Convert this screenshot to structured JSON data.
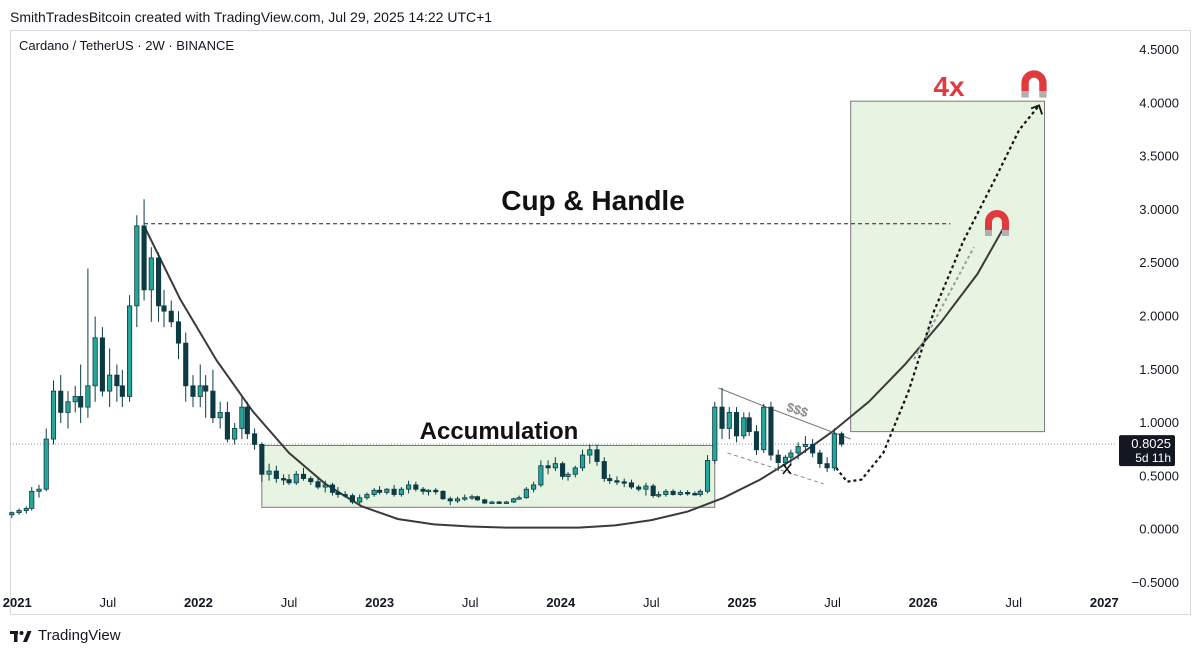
{
  "header": {
    "caption": "SmithTradesBitcoin created with TradingView.com, Jul 29, 2025 14:22 UTC+1"
  },
  "symbol": {
    "label": "Cardano / TetherUS · 2W · BINANCE"
  },
  "footer": {
    "brand": "TradingView",
    "logo_icon": "tradingview-logo-icon"
  },
  "annotations": {
    "pattern_title": "Cup & Handle",
    "range_label": "Accumulation",
    "target_label": "4x",
    "liquidity_label": "$$$",
    "magnet_icon": "magnet-icon"
  },
  "price_tag": {
    "price": "0.8025",
    "countdown": "5d 11h"
  },
  "colors": {
    "up": "#26a69a",
    "down": "#0d3b44",
    "target_box": "#e6f4e1",
    "target_text": "#e03a3e",
    "magnet": "#e03a3e",
    "price_tag_bg": "#131722"
  },
  "chart_data": {
    "type": "candlestick",
    "ylim": [
      -0.5,
      4.5
    ],
    "ytick_labels": [
      "4.5000",
      "4.0000",
      "3.5000",
      "3.0000",
      "2.5000",
      "2.0000",
      "1.5000",
      "1.0000",
      "0.5000",
      "0.0000",
      "−0.5000"
    ],
    "ytick_values": [
      4.5,
      4.0,
      3.5,
      3.0,
      2.5,
      2.0,
      1.5,
      1.0,
      0.5,
      0.0,
      -0.5
    ],
    "xtick_labels": [
      "2021",
      "Jul",
      "2022",
      "Jul",
      "2023",
      "Jul",
      "2024",
      "Jul",
      "2025",
      "Jul",
      "2026",
      "Jul",
      "2027"
    ],
    "xtick_values": [
      2021.0,
      2021.5,
      2022.0,
      2022.5,
      2023.0,
      2023.5,
      2024.0,
      2024.5,
      2025.0,
      2025.5,
      2026.0,
      2026.5,
      2027.0
    ],
    "xtick_bold": [
      true,
      false,
      true,
      false,
      true,
      false,
      true,
      false,
      true,
      false,
      true,
      false,
      true
    ],
    "xlim": [
      2020.96,
      2027.07
    ],
    "current_price": 0.8025,
    "candles": [
      {
        "t": 2020.97,
        "o": 0.14,
        "h": 0.17,
        "l": 0.11,
        "c": 0.16
      },
      {
        "t": 2021.01,
        "o": 0.16,
        "h": 0.2,
        "l": 0.14,
        "c": 0.18
      },
      {
        "t": 2021.05,
        "o": 0.18,
        "h": 0.22,
        "l": 0.15,
        "c": 0.2
      },
      {
        "t": 2021.08,
        "o": 0.2,
        "h": 0.4,
        "l": 0.18,
        "c": 0.36
      },
      {
        "t": 2021.12,
        "o": 0.36,
        "h": 0.42,
        "l": 0.3,
        "c": 0.38
      },
      {
        "t": 2021.16,
        "o": 0.38,
        "h": 0.95,
        "l": 0.36,
        "c": 0.85
      },
      {
        "t": 2021.2,
        "o": 0.85,
        "h": 1.4,
        "l": 0.8,
        "c": 1.3
      },
      {
        "t": 2021.24,
        "o": 1.3,
        "h": 1.45,
        "l": 1.0,
        "c": 1.1
      },
      {
        "t": 2021.28,
        "o": 1.1,
        "h": 1.3,
        "l": 0.95,
        "c": 1.2
      },
      {
        "t": 2021.32,
        "o": 1.2,
        "h": 1.35,
        "l": 1.1,
        "c": 1.25
      },
      {
        "t": 2021.35,
        "o": 1.25,
        "h": 1.55,
        "l": 1.0,
        "c": 1.15
      },
      {
        "t": 2021.39,
        "o": 1.15,
        "h": 2.45,
        "l": 1.05,
        "c": 1.35
      },
      {
        "t": 2021.43,
        "o": 1.35,
        "h": 2.0,
        "l": 1.2,
        "c": 1.8
      },
      {
        "t": 2021.47,
        "o": 1.8,
        "h": 1.9,
        "l": 1.25,
        "c": 1.3
      },
      {
        "t": 2021.51,
        "o": 1.3,
        "h": 1.7,
        "l": 1.15,
        "c": 1.45
      },
      {
        "t": 2021.55,
        "o": 1.45,
        "h": 1.55,
        "l": 1.2,
        "c": 1.35
      },
      {
        "t": 2021.58,
        "o": 1.35,
        "h": 1.5,
        "l": 1.15,
        "c": 1.25
      },
      {
        "t": 2021.62,
        "o": 1.25,
        "h": 2.2,
        "l": 1.2,
        "c": 2.1
      },
      {
        "t": 2021.66,
        "o": 2.1,
        "h": 2.95,
        "l": 1.9,
        "c": 2.85
      },
      {
        "t": 2021.7,
        "o": 2.85,
        "h": 3.1,
        "l": 2.15,
        "c": 2.25
      },
      {
        "t": 2021.74,
        "o": 2.25,
        "h": 2.65,
        "l": 1.95,
        "c": 2.55
      },
      {
        "t": 2021.78,
        "o": 2.55,
        "h": 2.6,
        "l": 1.95,
        "c": 2.1
      },
      {
        "t": 2021.81,
        "o": 2.1,
        "h": 2.25,
        "l": 1.9,
        "c": 2.05
      },
      {
        "t": 2021.85,
        "o": 2.05,
        "h": 2.15,
        "l": 1.9,
        "c": 1.95
      },
      {
        "t": 2021.89,
        "o": 1.95,
        "h": 2.05,
        "l": 1.6,
        "c": 1.75
      },
      {
        "t": 2021.93,
        "o": 1.75,
        "h": 1.85,
        "l": 1.2,
        "c": 1.35
      },
      {
        "t": 2021.97,
        "o": 1.35,
        "h": 1.45,
        "l": 1.15,
        "c": 1.25
      },
      {
        "t": 2022.01,
        "o": 1.25,
        "h": 1.55,
        "l": 1.15,
        "c": 1.35
      },
      {
        "t": 2022.04,
        "o": 1.35,
        "h": 1.45,
        "l": 1.05,
        "c": 1.3
      },
      {
        "t": 2022.08,
        "o": 1.3,
        "h": 1.5,
        "l": 1.0,
        "c": 1.05
      },
      {
        "t": 2022.12,
        "o": 1.05,
        "h": 1.2,
        "l": 0.95,
        "c": 1.1
      },
      {
        "t": 2022.16,
        "o": 1.1,
        "h": 1.2,
        "l": 0.82,
        "c": 0.85
      },
      {
        "t": 2022.2,
        "o": 0.85,
        "h": 1.0,
        "l": 0.8,
        "c": 0.95
      },
      {
        "t": 2022.24,
        "o": 0.95,
        "h": 1.25,
        "l": 0.85,
        "c": 1.15
      },
      {
        "t": 2022.27,
        "o": 1.15,
        "h": 1.2,
        "l": 0.85,
        "c": 0.9
      },
      {
        "t": 2022.31,
        "o": 0.9,
        "h": 0.95,
        "l": 0.75,
        "c": 0.8
      },
      {
        "t": 2022.35,
        "o": 0.8,
        "h": 0.82,
        "l": 0.45,
        "c": 0.52
      },
      {
        "t": 2022.39,
        "o": 0.52,
        "h": 0.62,
        "l": 0.46,
        "c": 0.55
      },
      {
        "t": 2022.43,
        "o": 0.55,
        "h": 0.6,
        "l": 0.44,
        "c": 0.48
      },
      {
        "t": 2022.47,
        "o": 0.48,
        "h": 0.52,
        "l": 0.42,
        "c": 0.47
      },
      {
        "t": 2022.5,
        "o": 0.47,
        "h": 0.52,
        "l": 0.42,
        "c": 0.44
      },
      {
        "t": 2022.54,
        "o": 0.44,
        "h": 0.55,
        "l": 0.42,
        "c": 0.52
      },
      {
        "t": 2022.58,
        "o": 0.52,
        "h": 0.58,
        "l": 0.46,
        "c": 0.48
      },
      {
        "t": 2022.62,
        "o": 0.48,
        "h": 0.5,
        "l": 0.42,
        "c": 0.45
      },
      {
        "t": 2022.66,
        "o": 0.45,
        "h": 0.48,
        "l": 0.38,
        "c": 0.4
      },
      {
        "t": 2022.7,
        "o": 0.4,
        "h": 0.46,
        "l": 0.35,
        "c": 0.42
      },
      {
        "t": 2022.74,
        "o": 0.42,
        "h": 0.44,
        "l": 0.32,
        "c": 0.35
      },
      {
        "t": 2022.77,
        "o": 0.35,
        "h": 0.4,
        "l": 0.3,
        "c": 0.33
      },
      {
        "t": 2022.81,
        "o": 0.33,
        "h": 0.36,
        "l": 0.3,
        "c": 0.32
      },
      {
        "t": 2022.85,
        "o": 0.32,
        "h": 0.34,
        "l": 0.24,
        "c": 0.26
      },
      {
        "t": 2022.89,
        "o": 0.26,
        "h": 0.33,
        "l": 0.24,
        "c": 0.3
      },
      {
        "t": 2022.93,
        "o": 0.3,
        "h": 0.35,
        "l": 0.28,
        "c": 0.33
      },
      {
        "t": 2022.97,
        "o": 0.33,
        "h": 0.39,
        "l": 0.31,
        "c": 0.37
      },
      {
        "t": 2023.0,
        "o": 0.37,
        "h": 0.41,
        "l": 0.33,
        "c": 0.35
      },
      {
        "t": 2023.04,
        "o": 0.35,
        "h": 0.39,
        "l": 0.33,
        "c": 0.38
      },
      {
        "t": 2023.08,
        "o": 0.38,
        "h": 0.42,
        "l": 0.31,
        "c": 0.33
      },
      {
        "t": 2023.12,
        "o": 0.33,
        "h": 0.4,
        "l": 0.31,
        "c": 0.38
      },
      {
        "t": 2023.16,
        "o": 0.38,
        "h": 0.46,
        "l": 0.34,
        "c": 0.42
      },
      {
        "t": 2023.2,
        "o": 0.42,
        "h": 0.45,
        "l": 0.36,
        "c": 0.38
      },
      {
        "t": 2023.24,
        "o": 0.38,
        "h": 0.4,
        "l": 0.33,
        "c": 0.36
      },
      {
        "t": 2023.27,
        "o": 0.36,
        "h": 0.38,
        "l": 0.32,
        "c": 0.37
      },
      {
        "t": 2023.31,
        "o": 0.37,
        "h": 0.39,
        "l": 0.33,
        "c": 0.36
      },
      {
        "t": 2023.35,
        "o": 0.36,
        "h": 0.37,
        "l": 0.28,
        "c": 0.29
      },
      {
        "t": 2023.39,
        "o": 0.29,
        "h": 0.31,
        "l": 0.23,
        "c": 0.27
      },
      {
        "t": 2023.43,
        "o": 0.27,
        "h": 0.31,
        "l": 0.25,
        "c": 0.29
      },
      {
        "t": 2023.47,
        "o": 0.29,
        "h": 0.33,
        "l": 0.27,
        "c": 0.3
      },
      {
        "t": 2023.51,
        "o": 0.3,
        "h": 0.33,
        "l": 0.28,
        "c": 0.31
      },
      {
        "t": 2023.54,
        "o": 0.31,
        "h": 0.32,
        "l": 0.27,
        "c": 0.28
      },
      {
        "t": 2023.58,
        "o": 0.28,
        "h": 0.29,
        "l": 0.24,
        "c": 0.25
      },
      {
        "t": 2023.62,
        "o": 0.25,
        "h": 0.27,
        "l": 0.24,
        "c": 0.26
      },
      {
        "t": 2023.66,
        "o": 0.26,
        "h": 0.27,
        "l": 0.24,
        "c": 0.25
      },
      {
        "t": 2023.7,
        "o": 0.25,
        "h": 0.27,
        "l": 0.24,
        "c": 0.26
      },
      {
        "t": 2023.74,
        "o": 0.26,
        "h": 0.3,
        "l": 0.25,
        "c": 0.29
      },
      {
        "t": 2023.77,
        "o": 0.29,
        "h": 0.32,
        "l": 0.28,
        "c": 0.3
      },
      {
        "t": 2023.81,
        "o": 0.3,
        "h": 0.4,
        "l": 0.29,
        "c": 0.38
      },
      {
        "t": 2023.85,
        "o": 0.38,
        "h": 0.45,
        "l": 0.35,
        "c": 0.42
      },
      {
        "t": 2023.89,
        "o": 0.42,
        "h": 0.65,
        "l": 0.4,
        "c": 0.6
      },
      {
        "t": 2023.93,
        "o": 0.6,
        "h": 0.65,
        "l": 0.52,
        "c": 0.58
      },
      {
        "t": 2023.97,
        "o": 0.58,
        "h": 0.68,
        "l": 0.55,
        "c": 0.62
      },
      {
        "t": 2024.01,
        "o": 0.62,
        "h": 0.64,
        "l": 0.47,
        "c": 0.5
      },
      {
        "t": 2024.04,
        "o": 0.5,
        "h": 0.54,
        "l": 0.46,
        "c": 0.52
      },
      {
        "t": 2024.08,
        "o": 0.52,
        "h": 0.6,
        "l": 0.49,
        "c": 0.58
      },
      {
        "t": 2024.12,
        "o": 0.58,
        "h": 0.75,
        "l": 0.55,
        "c": 0.7
      },
      {
        "t": 2024.16,
        "o": 0.7,
        "h": 0.8,
        "l": 0.62,
        "c": 0.75
      },
      {
        "t": 2024.2,
        "o": 0.75,
        "h": 0.8,
        "l": 0.6,
        "c": 0.64
      },
      {
        "t": 2024.24,
        "o": 0.64,
        "h": 0.68,
        "l": 0.45,
        "c": 0.48
      },
      {
        "t": 2024.27,
        "o": 0.48,
        "h": 0.52,
        "l": 0.43,
        "c": 0.46
      },
      {
        "t": 2024.31,
        "o": 0.46,
        "h": 0.5,
        "l": 0.42,
        "c": 0.45
      },
      {
        "t": 2024.35,
        "o": 0.45,
        "h": 0.48,
        "l": 0.4,
        "c": 0.44
      },
      {
        "t": 2024.39,
        "o": 0.44,
        "h": 0.47,
        "l": 0.38,
        "c": 0.4
      },
      {
        "t": 2024.43,
        "o": 0.4,
        "h": 0.42,
        "l": 0.36,
        "c": 0.38
      },
      {
        "t": 2024.47,
        "o": 0.38,
        "h": 0.44,
        "l": 0.32,
        "c": 0.41
      },
      {
        "t": 2024.51,
        "o": 0.41,
        "h": 0.43,
        "l": 0.3,
        "c": 0.32
      },
      {
        "t": 2024.54,
        "o": 0.32,
        "h": 0.36,
        "l": 0.3,
        "c": 0.33
      },
      {
        "t": 2024.58,
        "o": 0.33,
        "h": 0.38,
        "l": 0.31,
        "c": 0.36
      },
      {
        "t": 2024.62,
        "o": 0.36,
        "h": 0.38,
        "l": 0.32,
        "c": 0.33
      },
      {
        "t": 2024.66,
        "o": 0.33,
        "h": 0.37,
        "l": 0.32,
        "c": 0.35
      },
      {
        "t": 2024.7,
        "o": 0.35,
        "h": 0.37,
        "l": 0.32,
        "c": 0.34
      },
      {
        "t": 2024.74,
        "o": 0.34,
        "h": 0.36,
        "l": 0.32,
        "c": 0.33
      },
      {
        "t": 2024.77,
        "o": 0.33,
        "h": 0.38,
        "l": 0.31,
        "c": 0.36
      },
      {
        "t": 2024.81,
        "o": 0.36,
        "h": 0.7,
        "l": 0.34,
        "c": 0.65
      },
      {
        "t": 2024.85,
        "o": 0.65,
        "h": 1.2,
        "l": 0.62,
        "c": 1.15
      },
      {
        "t": 2024.89,
        "o": 1.15,
        "h": 1.33,
        "l": 0.85,
        "c": 0.95
      },
      {
        "t": 2024.93,
        "o": 0.95,
        "h": 1.15,
        "l": 0.85,
        "c": 1.1
      },
      {
        "t": 2024.97,
        "o": 1.1,
        "h": 1.15,
        "l": 0.82,
        "c": 0.88
      },
      {
        "t": 2025.01,
        "o": 0.88,
        "h": 1.1,
        "l": 0.85,
        "c": 1.05
      },
      {
        "t": 2025.04,
        "o": 1.05,
        "h": 1.1,
        "l": 0.88,
        "c": 0.92
      },
      {
        "t": 2025.08,
        "o": 0.92,
        "h": 0.98,
        "l": 0.7,
        "c": 0.75
      },
      {
        "t": 2025.12,
        "o": 0.75,
        "h": 1.18,
        "l": 0.72,
        "c": 1.15
      },
      {
        "t": 2025.16,
        "o": 1.15,
        "h": 1.2,
        "l": 0.65,
        "c": 0.7
      },
      {
        "t": 2025.2,
        "o": 0.7,
        "h": 0.75,
        "l": 0.55,
        "c": 0.63
      },
      {
        "t": 2025.24,
        "o": 0.63,
        "h": 0.7,
        "l": 0.58,
        "c": 0.68
      },
      {
        "t": 2025.27,
        "o": 0.68,
        "h": 0.75,
        "l": 0.6,
        "c": 0.72
      },
      {
        "t": 2025.31,
        "o": 0.72,
        "h": 0.82,
        "l": 0.66,
        "c": 0.78
      },
      {
        "t": 2025.35,
        "o": 0.78,
        "h": 0.88,
        "l": 0.72,
        "c": 0.8
      },
      {
        "t": 2025.39,
        "o": 0.8,
        "h": 0.85,
        "l": 0.68,
        "c": 0.72
      },
      {
        "t": 2025.43,
        "o": 0.72,
        "h": 0.75,
        "l": 0.58,
        "c": 0.62
      },
      {
        "t": 2025.47,
        "o": 0.62,
        "h": 0.68,
        "l": 0.54,
        "c": 0.58
      },
      {
        "t": 2025.51,
        "o": 0.58,
        "h": 0.95,
        "l": 0.55,
        "c": 0.9
      },
      {
        "t": 2025.55,
        "o": 0.9,
        "h": 0.92,
        "l": 0.78,
        "c": 0.8025
      }
    ],
    "cup_curve": [
      {
        "t": 2021.7,
        "v": 2.85
      },
      {
        "t": 2021.9,
        "v": 2.16
      },
      {
        "t": 2022.1,
        "v": 1.59
      },
      {
        "t": 2022.3,
        "v": 1.11
      },
      {
        "t": 2022.5,
        "v": 0.72
      },
      {
        "t": 2022.7,
        "v": 0.43
      },
      {
        "t": 2022.9,
        "v": 0.22
      },
      {
        "t": 2023.1,
        "v": 0.1
      },
      {
        "t": 2023.3,
        "v": 0.05
      },
      {
        "t": 2023.5,
        "v": 0.03
      },
      {
        "t": 2023.7,
        "v": 0.02
      },
      {
        "t": 2023.9,
        "v": 0.02
      },
      {
        "t": 2024.1,
        "v": 0.02
      },
      {
        "t": 2024.3,
        "v": 0.04
      },
      {
        "t": 2024.5,
        "v": 0.09
      },
      {
        "t": 2024.7,
        "v": 0.17
      },
      {
        "t": 2024.9,
        "v": 0.3
      },
      {
        "t": 2025.1,
        "v": 0.47
      },
      {
        "t": 2025.3,
        "v": 0.68
      },
      {
        "t": 2025.5,
        "v": 0.92
      },
      {
        "t": 2025.7,
        "v": 1.2
      },
      {
        "t": 2025.9,
        "v": 1.55
      },
      {
        "t": 2026.1,
        "v": 1.95
      },
      {
        "t": 2026.3,
        "v": 2.4
      },
      {
        "t": 2026.45,
        "v": 2.85
      }
    ],
    "resistance_line": {
      "t1": 2021.7,
      "t2": 2026.15,
      "v": 2.87
    },
    "accumulation_box": {
      "t1": 2022.35,
      "t2": 2024.85,
      "v1": 0.21,
      "v2": 0.79
    },
    "target_box": {
      "t1": 2025.6,
      "t2": 2026.67,
      "v1": 0.92,
      "v2": 4.02
    },
    "handle_channel": {
      "upper": [
        {
          "t": 2024.87,
          "v": 1.33
        },
        {
          "t": 2025.12,
          "v": 1.16
        },
        {
          "t": 2025.6,
          "v": 0.85
        }
      ],
      "lower": [
        {
          "t": 2024.92,
          "v": 0.72
        },
        {
          "t": 2025.45,
          "v": 0.43
        }
      ]
    },
    "projection_path": [
      {
        "t": 2025.52,
        "v": 0.58
      },
      {
        "t": 2025.58,
        "v": 0.45
      },
      {
        "t": 2025.66,
        "v": 0.47
      },
      {
        "t": 2025.78,
        "v": 0.72
      },
      {
        "t": 2025.92,
        "v": 1.3
      },
      {
        "t": 2026.06,
        "v": 2.05
      },
      {
        "t": 2026.22,
        "v": 2.7
      },
      {
        "t": 2026.4,
        "v": 3.3
      },
      {
        "t": 2026.53,
        "v": 3.75
      },
      {
        "t": 2026.64,
        "v": 3.98
      }
    ],
    "second_projection": [
      {
        "t": 2025.95,
        "v": 1.6
      },
      {
        "t": 2026.28,
        "v": 2.65
      }
    ]
  }
}
